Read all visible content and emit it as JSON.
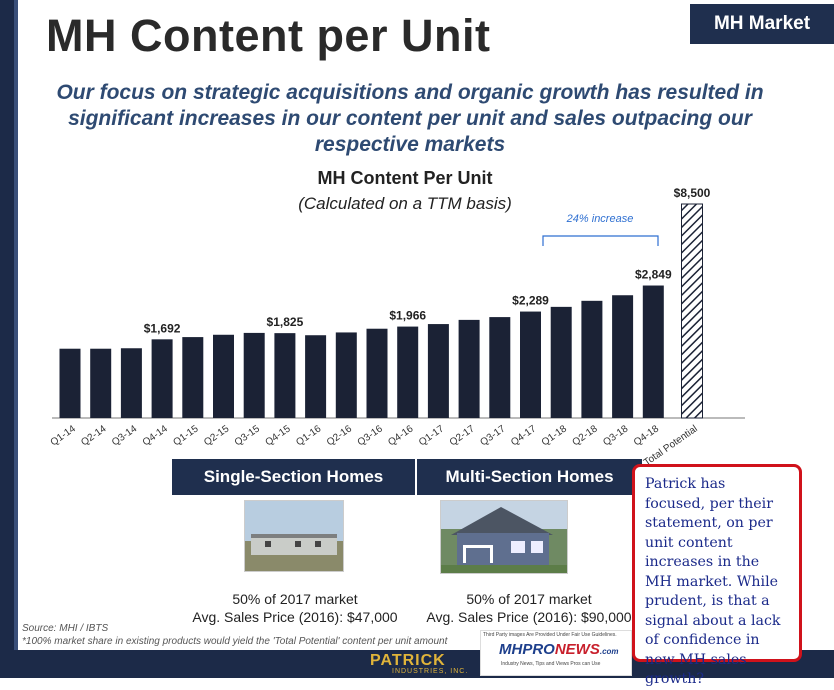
{
  "slide": {
    "title": "MH Content per Unit",
    "tag": "MH Market",
    "subtitle": "Our focus on strategic acquisitions and organic growth has resulted in significant increases in our content per unit and sales outpacing our respective markets"
  },
  "chart_data": {
    "type": "bar",
    "title": "MH Content Per Unit",
    "subtitle": "(Calculated on a TTM basis)",
    "categories": [
      "Q1-14",
      "Q2-14",
      "Q3-14",
      "Q4-14",
      "Q1-15",
      "Q2-15",
      "Q3-15",
      "Q4-15",
      "Q1-16",
      "Q2-16",
      "Q3-16",
      "Q4-16",
      "Q1-17",
      "Q2-17",
      "Q3-17",
      "Q4-17",
      "Q1-18",
      "Q2-18",
      "Q3-18",
      "Q4-18",
      "Total Potential"
    ],
    "values": [
      1490,
      1490,
      1500,
      1692,
      1740,
      1790,
      1830,
      1825,
      1780,
      1840,
      1920,
      1966,
      2020,
      2110,
      2170,
      2289,
      2390,
      2520,
      2640,
      2849,
      8500
    ],
    "data_labels": {
      "Q4-14": "$1,692",
      "Q4-15": "$1,825",
      "Q4-16": "$1,966",
      "Q4-17": "$2,289",
      "Q4-18": "$2,849",
      "Total Potential": "$8,500"
    },
    "annotation": "24% increase",
    "bar_color": "#1b2235",
    "potential_style": "hatched"
  },
  "segments": [
    {
      "label": "Single-Section Homes",
      "share": "50% of 2017 market",
      "price": "Avg. Sales Price (2016): $47,000"
    },
    {
      "label": "Multi-Section Homes",
      "share": "50% of 2017 market",
      "price": "Avg. Sales Price (2016): $90,000"
    }
  ],
  "footnotes": {
    "source": "Source: MHI / IBTS",
    "note": "*100% market share in existing products would yield the 'Total Potential' content per unit amount"
  },
  "branding": {
    "company": "PATRICK",
    "company_sub": "INDUSTRIES, INC.",
    "watermark_top": "Third Party images Are Provided Under Fair Use Guidelines.",
    "watermark_logo_a": "MHPRO",
    "watermark_logo_b": "NEWS",
    "watermark_logo_c": ".com",
    "watermark_tagline": "Industry News, Tips and Views Pros can Use"
  },
  "comment_box": {
    "text": "Patrick has focused, per their statement, on per unit content increases in the MH market. While prudent, is that a signal about a lack of confidence in new MH sales growth?"
  }
}
